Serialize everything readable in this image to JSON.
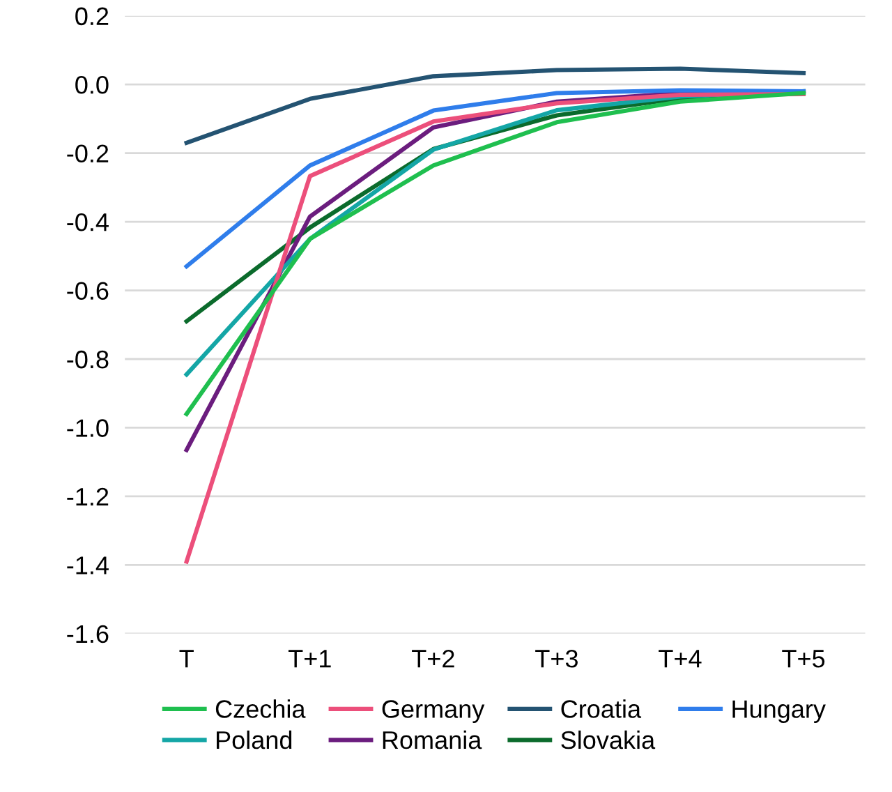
{
  "chart_data": {
    "type": "line",
    "categories": [
      "T",
      "T+1",
      "T+2",
      "T+3",
      "T+4",
      "T+5"
    ],
    "ylim": [
      -1.6,
      0.2
    ],
    "yticks": [
      {
        "value": -1.6,
        "label": "-1.6"
      },
      {
        "value": -1.4,
        "label": "-1.4"
      },
      {
        "value": -1.2,
        "label": "-1.2"
      },
      {
        "value": -1.0,
        "label": "-1.0"
      },
      {
        "value": -0.8,
        "label": "-0.8"
      },
      {
        "value": -0.6,
        "label": "-0.6"
      },
      {
        "value": -0.4,
        "label": "-0.4"
      },
      {
        "value": -0.2,
        "label": "-0.2"
      },
      {
        "value": 0.0,
        "label": "0.0"
      },
      {
        "value": 0.2,
        "label": "0.2"
      }
    ],
    "grid": "y",
    "legend": "bottom",
    "marker": "none",
    "line_style": "solid",
    "series": [
      {
        "name": "Czechia",
        "color": "#1fbf4f",
        "values": [
          -0.96,
          -0.45,
          -0.236,
          -0.11,
          -0.05,
          -0.025
        ]
      },
      {
        "name": "Germany",
        "color": "#ec4f7b",
        "values": [
          -1.39,
          -0.267,
          -0.108,
          -0.055,
          -0.03,
          -0.028
        ]
      },
      {
        "name": "Croatia",
        "color": "#245372",
        "values": [
          -0.17,
          -0.042,
          0.024,
          0.042,
          0.046,
          0.033
        ]
      },
      {
        "name": "Hungary",
        "color": "#2f7deb",
        "values": [
          -0.53,
          -0.236,
          -0.076,
          -0.025,
          -0.017,
          -0.02
        ]
      },
      {
        "name": "Poland",
        "color": "#14a6a6",
        "values": [
          -0.845,
          -0.45,
          -0.19,
          -0.075,
          -0.035,
          -0.02
        ]
      },
      {
        "name": "Romania",
        "color": "#6b1d7e",
        "values": [
          -1.065,
          -0.385,
          -0.125,
          -0.05,
          -0.025,
          -0.02
        ]
      },
      {
        "name": "Slovakia",
        "color": "#0b6b2c",
        "values": [
          -0.69,
          -0.417,
          -0.188,
          -0.09,
          -0.04,
          -0.02
        ]
      }
    ]
  }
}
